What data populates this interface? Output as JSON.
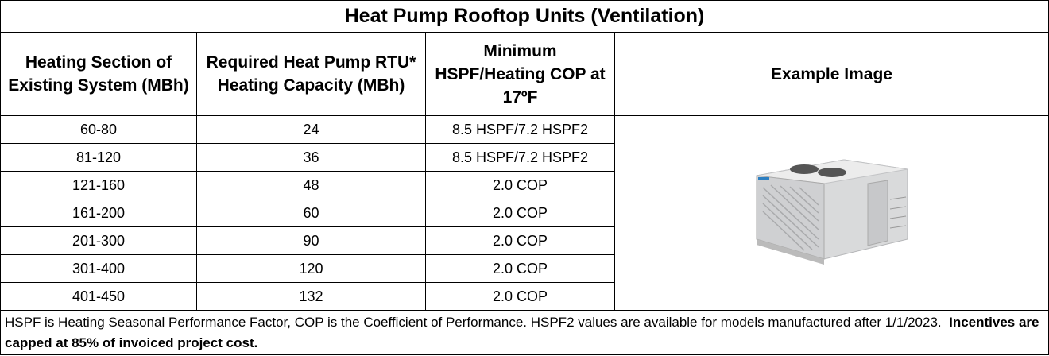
{
  "table": {
    "title": "Heat Pump Rooftop Units (Ventilation)",
    "headers": [
      "Heating Section of Existing System (MBh)",
      "Required Heat Pump RTU* Heating Capacity (MBh)",
      "Minimum HSPF/Heating COP at 17ºF",
      "Example Image"
    ],
    "rows": [
      [
        "60-80",
        24,
        "8.5 HSPF/7.2 HSPF2"
      ],
      [
        "81-120",
        36,
        "8.5 HSPF/7.2 HSPF2"
      ],
      [
        "121-160",
        48,
        "2.0 COP"
      ],
      [
        "161-200",
        60,
        "2.0 COP"
      ],
      [
        "201-300",
        90,
        "2.0 COP"
      ],
      [
        "301-400",
        120,
        "2.0 COP"
      ],
      [
        "401-450",
        132,
        "2.0 COP"
      ]
    ],
    "footer": {
      "note": "HSPF is Heating Seasonal Performance Factor, COP is the Coefficient of Performance. HSPF2 values are available for models manufactured after 1/1/2023.",
      "emphasis": "Incentives are capped at 85% of invoiced project cost."
    }
  }
}
